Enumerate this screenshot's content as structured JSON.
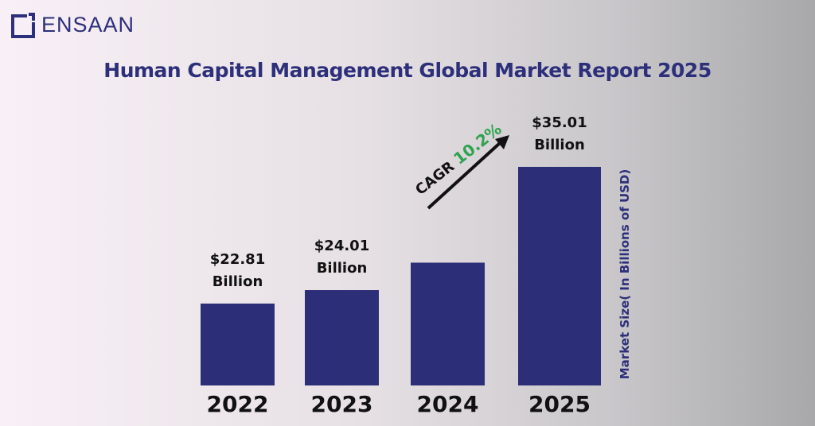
{
  "logo": {
    "text": "ENSAAN"
  },
  "colors": {
    "bar": "#2d2e78",
    "title": "#2d2f7a",
    "cagr": "#2ea34f",
    "text": "#111111"
  },
  "chart_data": {
    "type": "bar",
    "title": "Human Capital Management Global Market Report 2025",
    "ylabel": "Market Size( In Billions of USD)",
    "xlabel": "",
    "categories": [
      "2022",
      "2023",
      "2024",
      "2025"
    ],
    "values": [
      22.81,
      24.01,
      26.46,
      35.01
    ],
    "data_labels": [
      "$22.81\nBillion",
      "$24.01\nBillion",
      "",
      "$35.01\nBillion"
    ],
    "annotation": {
      "prefix": "CAGR",
      "value": "10.2%"
    },
    "grid": false,
    "ylim": [
      15.5,
      36
    ]
  }
}
